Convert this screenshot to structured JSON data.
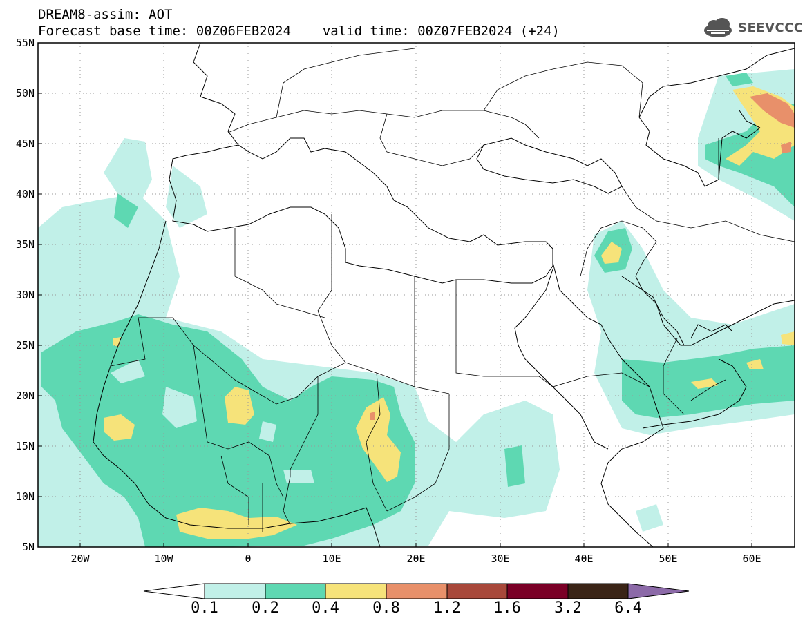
{
  "header": {
    "title": "DREAM8-assim: AOT",
    "base_label": "Forecast base time: 00Z06FEB2024",
    "valid_label": "valid time: 00Z07FEB2024 (+24)"
  },
  "logo": {
    "text": "SEEVCCC",
    "icon": "cloud-icon"
  },
  "map": {
    "lat_ticks": [
      "55N",
      "50N",
      "45N",
      "40N",
      "35N",
      "30N",
      "25N",
      "20N",
      "15N",
      "10N",
      "5N"
    ],
    "lon_ticks": [
      "20W",
      "10W",
      "0",
      "10E",
      "20E",
      "30E",
      "40E",
      "50E",
      "60E"
    ],
    "lat_range": [
      5,
      55
    ],
    "lon_range": [
      -25,
      65
    ],
    "grid": true,
    "field": "AOT",
    "fill_levels": [
      {
        "level": "0.1-0.2",
        "color": "#bff0e6"
      },
      {
        "level": "0.2-0.4",
        "color": "#5cdbb4"
      },
      {
        "level": "0.4-0.8",
        "color": "#f5e67a"
      },
      {
        "level": "0.8-1.2",
        "color": "#eb9070"
      },
      {
        "level": "1.2-1.6",
        "color": "#a8483a"
      }
    ]
  },
  "colorbar": {
    "labels": [
      "0.1",
      "0.2",
      "0.4",
      "0.8",
      "1.2",
      "1.6",
      "3.2",
      "6.4"
    ],
    "colors": [
      "#ffffff",
      "#c1f0e8",
      "#5ed8b2",
      "#f6e37a",
      "#e8906a",
      "#a8483a",
      "#7a0026",
      "#3a2416",
      "#8c6aa8"
    ]
  }
}
